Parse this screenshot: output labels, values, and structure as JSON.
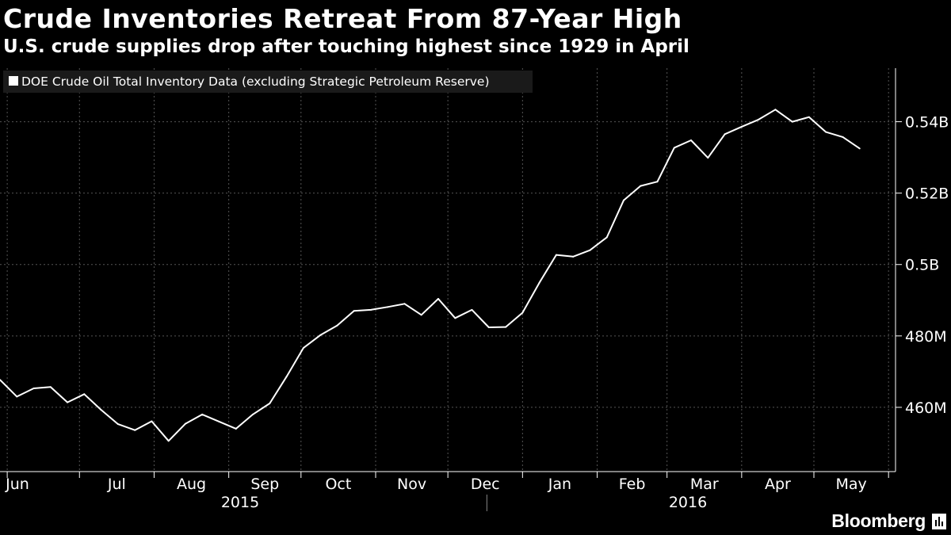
{
  "title": "Crude Inventories Retreat From 87-Year High",
  "subtitle": "U.S. crude supplies drop after touching highest since 1929 in April",
  "brand": "Bloomberg",
  "icons": {
    "brand": "bloomberg-terminal-icon"
  },
  "colors": {
    "background": "#000000",
    "line": "#ffffff",
    "grid": "#555555",
    "legend_bg": "#1a1a1a"
  },
  "chart_data": {
    "type": "line",
    "title": "Crude Inventories Retreat From 87-Year High",
    "subtitle": "U.S. crude supplies drop after touching highest since 1929 in April",
    "legend": {
      "placement": "top-left",
      "entries": [
        "DOE Crude Oil Total Inventory Data (excluding Strategic Petroleum Reserve)"
      ]
    },
    "xlabel": "",
    "ylabel": "",
    "grid": true,
    "y_axis_position": "right",
    "ylim": [
      442,
      555
    ],
    "y_ticks": [
      {
        "value": 460,
        "label": "460M"
      },
      {
        "value": 480,
        "label": "480M"
      },
      {
        "value": 500,
        "label": "0.5B"
      },
      {
        "value": 520,
        "label": "0.52B"
      },
      {
        "value": 540,
        "label": "0.54B"
      }
    ],
    "x_months": [
      "Jun",
      "Jul",
      "Aug",
      "Sep",
      "Oct",
      "Nov",
      "Dec",
      "Jan",
      "Feb",
      "Mar",
      "Apr",
      "May"
    ],
    "x_years": [
      "2015",
      "2016"
    ],
    "series": [
      {
        "name": "DOE Crude Oil Total Inventory Data (excluding Strategic Petroleum Reserve)",
        "unit": "million barrels",
        "dates": [
          "2015-05-29",
          "2015-06-05",
          "2015-06-12",
          "2015-06-19",
          "2015-06-26",
          "2015-07-03",
          "2015-07-10",
          "2015-07-17",
          "2015-07-24",
          "2015-07-31",
          "2015-08-07",
          "2015-08-14",
          "2015-08-21",
          "2015-08-28",
          "2015-09-04",
          "2015-09-11",
          "2015-09-18",
          "2015-09-25",
          "2015-10-02",
          "2015-10-09",
          "2015-10-16",
          "2015-10-23",
          "2015-10-30",
          "2015-11-06",
          "2015-11-13",
          "2015-11-20",
          "2015-11-27",
          "2015-12-04",
          "2015-12-11",
          "2015-12-18",
          "2015-12-25",
          "2016-01-01",
          "2016-01-08",
          "2016-01-15",
          "2016-01-22",
          "2016-01-29",
          "2016-02-05",
          "2016-02-12",
          "2016-02-19",
          "2016-02-26",
          "2016-03-04",
          "2016-03-11",
          "2016-03-18",
          "2016-03-25",
          "2016-04-01",
          "2016-04-08",
          "2016-04-15",
          "2016-04-22",
          "2016-04-29",
          "2016-05-06",
          "2016-05-13",
          "2016-05-20",
          "2016-05-27"
        ],
        "values": [
          467.7,
          463.0,
          465.3,
          465.7,
          461.4,
          463.7,
          459.3,
          455.3,
          453.6,
          456.1,
          450.6,
          455.4,
          458.0,
          456.0,
          454.0,
          458.0,
          461.1,
          468.6,
          476.6,
          480.2,
          482.9,
          487.0,
          487.3,
          488.1,
          489.0,
          485.9,
          490.4,
          485.0,
          487.3,
          482.4,
          482.5,
          486.5,
          494.9,
          502.7,
          502.2,
          504.0,
          507.6,
          518.0,
          522.0,
          523.2,
          532.7,
          534.8,
          529.9,
          536.5,
          538.6,
          540.6,
          543.4,
          540.0,
          541.3,
          537.1,
          535.7,
          532.5,
          null
        ]
      }
    ]
  }
}
